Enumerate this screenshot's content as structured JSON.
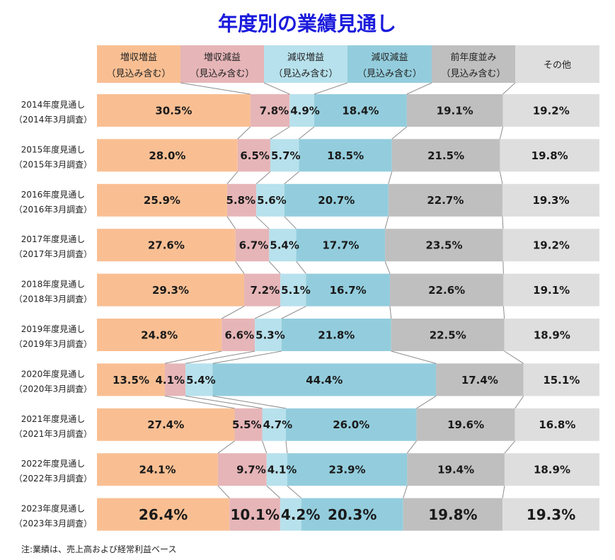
{
  "chart_data": {
    "type": "bar",
    "stacked": "100%",
    "orientation": "horizontal",
    "title": "年度別の業績見通し",
    "note": "注:業績は、売上高および経常利益ベース",
    "series": [
      {
        "name_line1": "増収増益",
        "name_line2": "（見込み含む）",
        "color": "#f9bf93",
        "values": [
          30.5,
          28.0,
          25.9,
          27.6,
          29.3,
          24.8,
          13.5,
          27.4,
          24.1,
          26.4
        ],
        "labels": [
          "30.5%",
          "28.0%",
          "25.9%",
          "27.6%",
          "29.3%",
          "24.8%",
          "13.5%",
          "27.4%",
          "24.1%",
          "26.4%"
        ]
      },
      {
        "name_line1": "増収減益",
        "name_line2": "（見込み含む）",
        "color": "#e6b5b8",
        "values": [
          7.8,
          6.5,
          5.8,
          6.7,
          7.2,
          6.6,
          4.1,
          5.5,
          9.7,
          10.1
        ],
        "labels": [
          "7.8%",
          "6.5%",
          "5.8%",
          "6.7%",
          "7.2%",
          "6.6%",
          "4.1%",
          "5.5%",
          "9.7%",
          "10.1%"
        ]
      },
      {
        "name_line1": "減収増益",
        "name_line2": "（見込み含む）",
        "color": "#b7e1ec",
        "values": [
          4.9,
          5.7,
          5.6,
          5.4,
          5.1,
          5.3,
          5.4,
          4.7,
          4.1,
          4.2
        ],
        "labels": [
          "4.9%",
          "5.7%",
          "5.6%",
          "5.4%",
          "5.1%",
          "5.3%",
          "5.4%",
          "4.7%",
          "4.1%",
          "4.2%"
        ]
      },
      {
        "name_line1": "減収減益",
        "name_line2": "（見込み含む）",
        "color": "#93cddd",
        "values": [
          18.4,
          18.5,
          20.7,
          17.7,
          16.7,
          21.8,
          44.4,
          26.0,
          23.9,
          20.3
        ],
        "labels": [
          "18.4%",
          "18.5%",
          "20.7%",
          "17.7%",
          "16.7%",
          "21.8%",
          "44.4%",
          "26.0%",
          "23.9%",
          "20.3%"
        ]
      },
      {
        "name_line1": "前年度並み",
        "name_line2": "（見込み含む）",
        "color": "#bfbfbf",
        "values": [
          19.1,
          21.5,
          22.7,
          23.5,
          22.6,
          22.5,
          17.4,
          19.6,
          19.4,
          19.8
        ],
        "labels": [
          "19.1%",
          "21.5%",
          "22.7%",
          "23.5%",
          "22.6%",
          "22.5%",
          "17.4%",
          "19.6%",
          "19.4%",
          "19.8%"
        ]
      },
      {
        "name_line1": "その他",
        "name_line2": "",
        "color": "#dedede",
        "values": [
          19.2,
          19.8,
          19.3,
          19.2,
          19.1,
          18.9,
          15.1,
          16.8,
          18.9,
          19.3
        ],
        "labels": [
          "19.2%",
          "19.8%",
          "19.3%",
          "19.2%",
          "19.1%",
          "18.9%",
          "15.1%",
          "16.8%",
          "18.9%",
          "19.3%"
        ]
      }
    ],
    "categories": [
      {
        "line1": "2014年度見通し",
        "line2": "（2014年3月調査）"
      },
      {
        "line1": "2015年度見通し",
        "line2": "（2015年3月調査）"
      },
      {
        "line1": "2016年度見通し",
        "line2": "（2016年3月調査）"
      },
      {
        "line1": "2017年度見通し",
        "line2": "（2017年3月調査）"
      },
      {
        "line1": "2018年度見通し",
        "line2": "（2018年3月調査）"
      },
      {
        "line1": "2019年度見通し",
        "line2": "（2019年3月調査）"
      },
      {
        "line1": "2020年度見通し",
        "line2": "（2020年3月調査）"
      },
      {
        "line1": "2021年度見通し",
        "line2": "（2021年3月調査）"
      },
      {
        "line1": "2022年度見通し",
        "line2": "（2022年3月調査）"
      },
      {
        "line1": "2023年度見通し",
        "line2": "（2023年3月調査）"
      }
    ],
    "connector_lines": true,
    "legend_placement": "top"
  }
}
